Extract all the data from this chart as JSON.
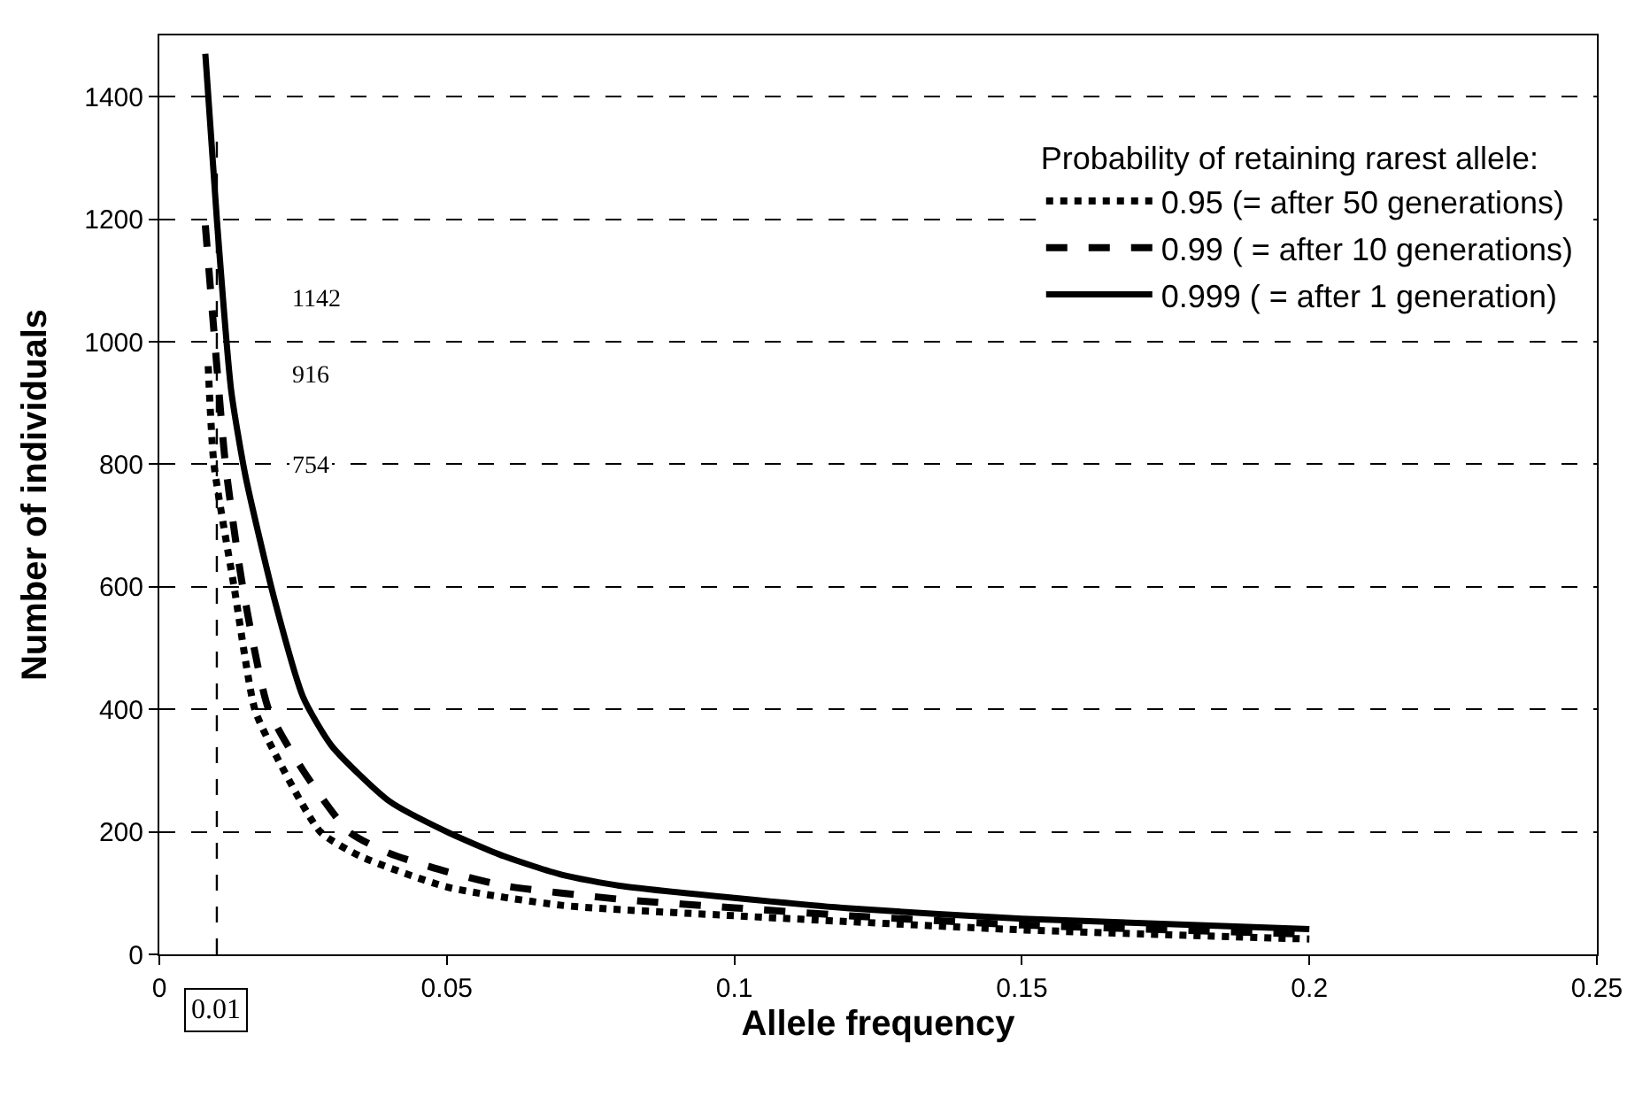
{
  "chart_data": {
    "type": "line",
    "xlabel": "Allele frequency",
    "ylabel": "Number of individuals",
    "legend_title": "Probability of retaining rarest allele:",
    "series": [
      {
        "name": "0.95 (= after 50 generations)",
        "color": "#000000",
        "line_style": "dotted",
        "x": [
          0.0085,
          0.0095,
          0.013,
          0.0166,
          0.02,
          0.028,
          0.035,
          0.05,
          0.07,
          0.1,
          0.15,
          0.2
        ],
        "values": [
          960,
          800,
          600,
          400,
          330,
          200,
          160,
          110,
          80,
          63,
          40,
          25
        ]
      },
      {
        "name": "0.99 ( = after 10 generations)",
        "color": "#000000",
        "line_style": "dashed",
        "x": [
          0.008,
          0.01,
          0.0115,
          0.0145,
          0.019,
          0.025,
          0.033,
          0.04,
          0.05,
          0.06,
          0.08,
          0.1,
          0.12,
          0.15,
          0.2
        ],
        "values": [
          1190,
          960,
          800,
          600,
          400,
          300,
          200,
          165,
          135,
          112,
          90,
          76,
          63,
          48,
          33
        ]
      },
      {
        "name": "0.999 ( = after 1 generation)",
        "color": "#000000",
        "line_style": "solid",
        "x": [
          0.008,
          0.01,
          0.0125,
          0.015,
          0.02,
          0.025,
          0.03,
          0.04,
          0.05,
          0.06,
          0.07,
          0.08,
          0.1,
          0.12,
          0.15,
          0.2
        ],
        "values": [
          1470,
          1200,
          920,
          780,
          580,
          420,
          340,
          250,
          200,
          160,
          130,
          112,
          92,
          75,
          58,
          41
        ]
      }
    ],
    "annotations": [
      "1142",
      "916",
      "754"
    ],
    "ref_lines": [
      {
        "axis": "x",
        "value": 0.01,
        "label": "0.01",
        "line_style": "dashed",
        "color": "#000000"
      }
    ],
    "xlim": [
      0,
      0.25
    ],
    "xticks": [
      0,
      0.05,
      0.1,
      0.15,
      0.2,
      0.25
    ],
    "ylim": [
      0,
      1500
    ],
    "yticks": [
      0,
      200,
      400,
      600,
      800,
      1000,
      1200,
      1400
    ],
    "grid": "y",
    "legend": "top right",
    "marker": "none"
  }
}
